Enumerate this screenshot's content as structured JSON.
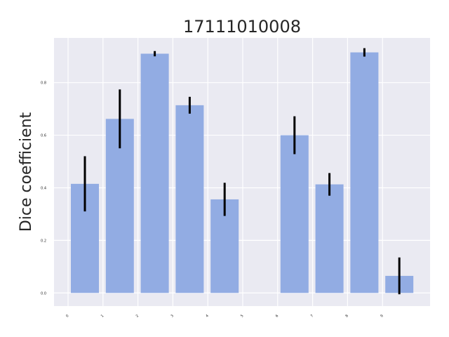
{
  "chart_data": {
    "type": "bar",
    "title": "17111010008",
    "xlabel": "",
    "ylabel": "Dice coefficient",
    "categories": [
      "0",
      "1",
      "2",
      "3",
      "4",
      "5",
      "6",
      "7",
      "8",
      "9"
    ],
    "values": [
      0.415,
      0.662,
      0.91,
      0.714,
      0.356,
      null,
      0.6,
      0.413,
      0.915,
      0.065
    ],
    "error": [
      0.105,
      0.112,
      0.01,
      0.032,
      0.063,
      null,
      0.072,
      0.043,
      0.016,
      0.07
    ],
    "ylim": [
      -0.05,
      0.97
    ],
    "yticks": [
      "0.0",
      "0.2",
      "0.4",
      "0.6",
      "0.8"
    ],
    "grid": true,
    "colors": {
      "plot_background": "#EAEAF2",
      "grid": "#FFFFFF",
      "bar": "#92ACE3",
      "error_bar": "#000000",
      "text": "#262626"
    }
  }
}
